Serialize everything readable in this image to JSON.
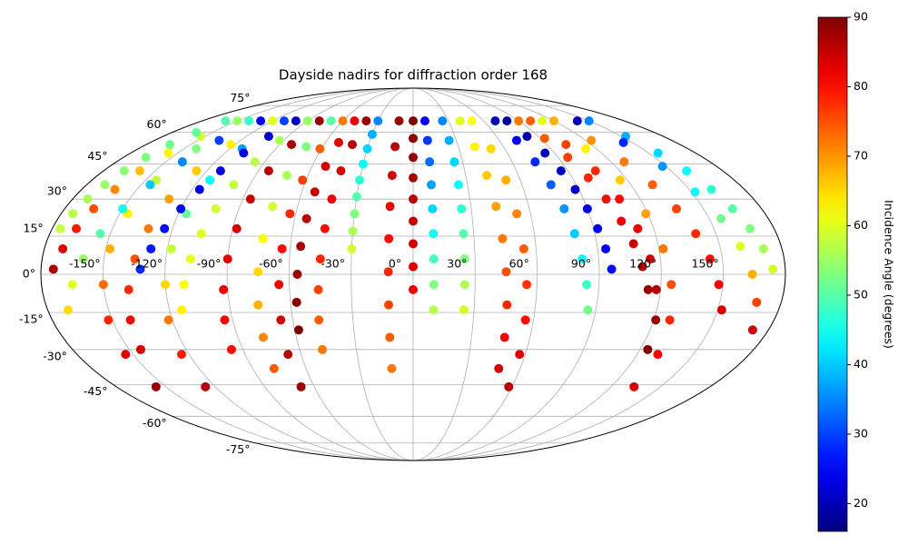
{
  "chart_data": {
    "type": "scatter",
    "projection": "mollweide",
    "title": "Dayside nadirs for diffraction order 168",
    "colorbar_label": "Incidence Angle (degrees)",
    "colormap": "jet",
    "clim": [
      16,
      90
    ],
    "cticks": [
      20,
      30,
      40,
      50,
      60,
      70,
      80,
      90
    ],
    "grid": true,
    "xlim": [
      -180,
      180
    ],
    "ylim": [
      -90,
      90
    ],
    "xticks": [
      {
        "value": -150,
        "label": "-150°"
      },
      {
        "value": -120,
        "label": "-120°"
      },
      {
        "value": -90,
        "label": "-90°"
      },
      {
        "value": -60,
        "label": "-60°"
      },
      {
        "value": -30,
        "label": "-30°"
      },
      {
        "value": 0,
        "label": "0°"
      },
      {
        "value": 30,
        "label": "30°"
      },
      {
        "value": 60,
        "label": "60°"
      },
      {
        "value": 90,
        "label": "90°"
      },
      {
        "value": 120,
        "label": "120°"
      },
      {
        "value": 150,
        "label": "150°"
      }
    ],
    "yticks": [
      {
        "value": -75,
        "label": "-75°"
      },
      {
        "value": -60,
        "label": "-60°"
      },
      {
        "value": -45,
        "label": "-45°"
      },
      {
        "value": -30,
        "label": "-30°"
      },
      {
        "value": -15,
        "label": "-15°"
      },
      {
        "value": 0,
        "label": "0°"
      },
      {
        "value": 15,
        "label": "15°"
      },
      {
        "value": 30,
        "label": "30°"
      },
      {
        "value": 45,
        "label": "45°"
      },
      {
        "value": 60,
        "label": "60°"
      },
      {
        "value": 75,
        "label": "75°"
      }
    ],
    "series": [
      {
        "x": [
          -150,
          -153,
          -156,
          -159,
          -162,
          -165,
          -168,
          -171,
          -174
        ],
        "y": [
          66,
          58,
          50,
          42,
          34,
          26,
          18,
          10,
          2
        ],
        "values": [
          55,
          59,
          63,
          67,
          71,
          75,
          79,
          83,
          87
        ]
      },
      {
        "x": [
          -140,
          -142,
          -144,
          -146,
          -148,
          -150,
          -152,
          -154,
          -156
        ],
        "y": [
          66,
          52,
          38,
          24,
          10,
          -4,
          -18,
          -32,
          -46
        ],
        "values": [
          48,
          53,
          58,
          63,
          68,
          73,
          78,
          83,
          88
        ]
      },
      {
        "x": [
          -120,
          -123,
          -126,
          -129,
          -132,
          -135,
          -138,
          -141,
          -144
        ],
        "y": [
          66,
          54,
          42,
          30,
          18,
          6,
          -6,
          -18,
          -30
        ],
        "values": [
          60,
          63,
          66,
          69,
          72,
          75,
          78,
          81,
          84
        ]
      },
      {
        "x": [
          -130,
          -135,
          -140,
          -145,
          -150,
          -155,
          -160,
          -165,
          -170
        ],
        "y": [
          66,
          56,
          46,
          36,
          26,
          16,
          6,
          -4,
          -14
        ],
        "values": [
          25,
          30,
          35,
          40,
          45,
          50,
          55,
          60,
          65
        ]
      },
      {
        "x": [
          -110,
          -112,
          -114,
          -116,
          -118,
          -120,
          -122,
          -124,
          -126
        ],
        "y": [
          66,
          52,
          38,
          24,
          10,
          -4,
          -18,
          -32,
          -46
        ],
        "values": [
          30,
          37,
          44,
          51,
          58,
          65,
          72,
          79,
          86
        ]
      },
      {
        "x": [
          -100,
          -104,
          -108,
          -112,
          -116,
          -120,
          -124,
          -128,
          -132
        ],
        "y": [
          66,
          58,
          50,
          42,
          34,
          26,
          18,
          10,
          2
        ],
        "values": [
          20,
          21,
          22,
          23,
          24,
          25,
          26,
          27,
          28
        ]
      },
      {
        "x": [
          -90,
          -93,
          -96,
          -99,
          -102,
          -105,
          -108,
          -111,
          -114
        ],
        "y": [
          66,
          56,
          46,
          36,
          26,
          16,
          6,
          -4,
          -14
        ],
        "values": [
          55,
          56,
          57,
          58,
          59,
          60,
          61,
          62,
          63
        ]
      },
      {
        "x": [
          -80,
          -82,
          -84,
          -86,
          -88,
          -90,
          -92,
          -94,
          -96
        ],
        "y": [
          66,
          54,
          42,
          30,
          18,
          6,
          -6,
          -18,
          -30
        ],
        "values": [
          88,
          87,
          86,
          85,
          84,
          83,
          82,
          81,
          80
        ]
      },
      {
        "x": [
          -70,
          -71,
          -72,
          -73,
          -74,
          -75,
          -76,
          -77,
          -78
        ],
        "y": [
          66,
          53,
          40,
          27,
          14,
          1,
          -12,
          -25,
          -38
        ],
        "values": [
          50,
          53,
          56,
          59,
          62,
          65,
          68,
          71,
          74
        ]
      },
      {
        "x": [
          -60,
          -61,
          -62,
          -63,
          -64,
          -65,
          -66,
          -67,
          -68
        ],
        "y": [
          66,
          52,
          38,
          24,
          10,
          -4,
          -18,
          -32,
          -46
        ],
        "values": [
          72,
          74,
          76,
          78,
          80,
          82,
          84,
          86,
          88
        ]
      },
      {
        "x": [
          -50,
          -51,
          -52,
          -53,
          -54,
          -55,
          -56,
          -57,
          -58
        ],
        "y": [
          66,
          55,
          44,
          33,
          22,
          11,
          0,
          -11,
          -22
        ],
        "values": [
          82,
          83,
          84,
          85,
          86,
          87,
          88,
          89,
          90
        ]
      },
      {
        "x": [
          -40,
          -41,
          -42,
          -43,
          -44,
          -45,
          -46,
          -47,
          -48
        ],
        "y": [
          66,
          54,
          42,
          30,
          18,
          6,
          -6,
          -18,
          -30
        ],
        "values": [
          88,
          86,
          84,
          82,
          80,
          78,
          76,
          74,
          72
        ]
      },
      {
        "x": [
          -30,
          -30,
          -30,
          -30,
          -30,
          -30,
          -30,
          -30,
          -30
        ],
        "y": [
          66,
          59,
          52,
          45,
          38,
          31,
          24,
          17,
          10
        ],
        "values": [
          35,
          38,
          41,
          44,
          47,
          50,
          53,
          56,
          59
        ]
      },
      {
        "x": [
          -12,
          -12,
          -12,
          -12,
          -12,
          -12,
          -12,
          -12,
          -12
        ],
        "y": [
          66,
          53,
          40,
          27,
          14,
          1,
          -12,
          -25,
          -38
        ],
        "values": [
          88,
          86,
          84,
          82,
          80,
          78,
          76,
          74,
          72
        ]
      },
      {
        "x": [
          0,
          0,
          0,
          0,
          0,
          0,
          0,
          0,
          0
        ],
        "y": [
          66,
          57,
          48,
          39,
          30,
          21,
          12,
          3,
          -6
        ],
        "values": [
          90,
          89,
          88,
          87,
          86,
          85,
          84,
          83,
          82
        ]
      },
      {
        "x": [
          10,
          10,
          10,
          10,
          10,
          10,
          10,
          10,
          10
        ],
        "y": [
          66,
          56,
          46,
          36,
          26,
          16,
          6,
          -4,
          -14
        ],
        "values": [
          25,
          29,
          33,
          37,
          41,
          45,
          49,
          53,
          57
        ]
      },
      {
        "x": [
          25,
          25,
          25,
          25,
          25,
          25,
          25,
          25,
          25
        ],
        "y": [
          66,
          56,
          46,
          36,
          26,
          16,
          6,
          -4,
          -14
        ],
        "values": [
          35,
          38,
          41,
          44,
          47,
          50,
          53,
          56,
          59
        ]
      },
      {
        "x": [
          40,
          41,
          42,
          43,
          44,
          45,
          46,
          47,
          48
        ],
        "y": [
          66,
          53,
          40,
          27,
          14,
          1,
          -12,
          -25,
          -38
        ],
        "values": [
          60,
          63,
          66,
          69,
          72,
          75,
          78,
          81,
          84
        ]
      },
      {
        "x": [
          50,
          51,
          52,
          53,
          54,
          55,
          56,
          57,
          58
        ],
        "y": [
          66,
          52,
          38,
          24,
          10,
          -4,
          -18,
          -32,
          -46
        ],
        "values": [
          62,
          65,
          68,
          71,
          74,
          77,
          80,
          83,
          86
        ]
      },
      {
        "x": [
          70,
          72,
          74,
          76,
          78,
          80,
          82,
          84,
          86
        ],
        "y": [
          66,
          56,
          46,
          36,
          26,
          16,
          6,
          -4,
          -14
        ],
        "values": [
          20,
          24,
          28,
          32,
          36,
          40,
          44,
          48,
          52
        ]
      },
      {
        "x": [
          80,
          82,
          84,
          86,
          88,
          90,
          92,
          94,
          96
        ],
        "y": [
          66,
          58,
          50,
          42,
          34,
          26,
          18,
          10,
          2
        ],
        "values": [
          18,
          19,
          20,
          21,
          22,
          23,
          24,
          25,
          26
        ]
      },
      {
        "x": [
          90,
          93,
          96,
          99,
          102,
          105,
          108,
          111,
          114
        ],
        "y": [
          66,
          57,
          48,
          39,
          30,
          21,
          12,
          3,
          -6
        ],
        "values": [
          72,
          74,
          76,
          78,
          80,
          82,
          84,
          86,
          88
        ]
      },
      {
        "x": [
          100,
          103,
          106,
          109,
          112,
          115,
          118,
          121,
          124
        ],
        "y": [
          66,
          54,
          42,
          30,
          18,
          6,
          -6,
          -18,
          -30
        ],
        "values": [
          74,
          76,
          78,
          80,
          82,
          84,
          86,
          88,
          90
        ]
      },
      {
        "x": [
          120,
          124,
          128,
          132,
          136,
          140,
          144,
          148,
          152
        ],
        "y": [
          66,
          56,
          46,
          36,
          26,
          16,
          6,
          -4,
          -14
        ],
        "values": [
          68,
          70,
          72,
          74,
          76,
          78,
          80,
          82,
          84
        ]
      },
      {
        "x": [
          110,
          113,
          116,
          119,
          122,
          125,
          128,
          131,
          134
        ],
        "y": [
          66,
          52,
          38,
          24,
          10,
          -4,
          -18,
          -32,
          -46
        ],
        "values": [
          60,
          63,
          66,
          69,
          72,
          75,
          78,
          81,
          84
        ]
      },
      {
        "x": [
          150,
          153,
          156,
          159,
          162,
          165,
          168,
          171,
          174
        ],
        "y": [
          66,
          58,
          50,
          42,
          34,
          26,
          18,
          10,
          2
        ],
        "values": [
          35,
          38,
          41,
          44,
          47,
          50,
          53,
          56,
          59
        ]
      },
      {
        "x": [
          140,
          144,
          148,
          152,
          156,
          160,
          164,
          168,
          172
        ],
        "y": [
          66,
          55,
          44,
          33,
          22,
          11,
          0,
          -11,
          -22
        ],
        "values": [
          20,
          28,
          36,
          44,
          52,
          60,
          68,
          76,
          84
        ]
      },
      {
        "x": [
          -160,
          -162,
          -164,
          -166,
          -168,
          -170,
          -172,
          -174,
          -176
        ],
        "y": [
          66,
          60,
          54,
          48,
          42,
          36,
          30,
          24,
          18
        ],
        "values": [
          50,
          51,
          52,
          53,
          54,
          55,
          56,
          57,
          58
        ]
      }
    ]
  }
}
